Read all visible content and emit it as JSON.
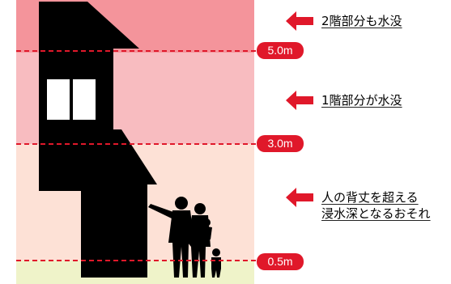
{
  "levels": [
    {
      "label": "5.0m"
    },
    {
      "label": "3.0m"
    },
    {
      "label": "0.5m"
    }
  ],
  "notes": [
    {
      "lines": [
        "2階部分も水没"
      ]
    },
    {
      "lines": [
        "1階部分が水没"
      ]
    },
    {
      "lines": [
        "人の背丈を超える",
        "浸水深となるおそれ"
      ]
    }
  ],
  "colors": {
    "zone_top": "#f4949b",
    "zone_mid": "#f8bcc0",
    "zone_low": "#fde1d6",
    "ground": "#eff3c9",
    "accent": "#e0182a",
    "silhouette": "#000000"
  },
  "icons": [
    "left-arrow-icon",
    "house-silhouette",
    "people-silhouette"
  ]
}
